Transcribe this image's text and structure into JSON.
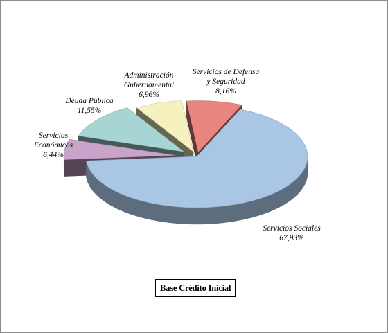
{
  "chart_data": {
    "type": "pie",
    "three_d": true,
    "exploded": true,
    "title": "",
    "caption": "Base Crédito Inicial",
    "slices": [
      {
        "label_lines": [
          "Servicios de Defensa",
          "y Seguridad"
        ],
        "value_text": "8,16%",
        "value": 8.16,
        "color": "#e8857f"
      },
      {
        "label_lines": [
          "Servicios Sociales"
        ],
        "value_text": "67,93%",
        "value": 67.93,
        "color": "#a9c6e5"
      },
      {
        "label_lines": [
          "Servicios",
          "Económicos"
        ],
        "value_text": "6,44%",
        "value": 6.44,
        "color": "#c9a3c9"
      },
      {
        "label_lines": [
          "Deuda Pública"
        ],
        "value_text": "11,55%",
        "value": 11.55,
        "color": "#a7d5d4"
      },
      {
        "label_lines": [
          "Administración",
          "Gubernamental"
        ],
        "value_text": "6,96%",
        "value": 6.96,
        "color": "#f6f2bf"
      }
    ],
    "legend": "none",
    "grid": false
  }
}
